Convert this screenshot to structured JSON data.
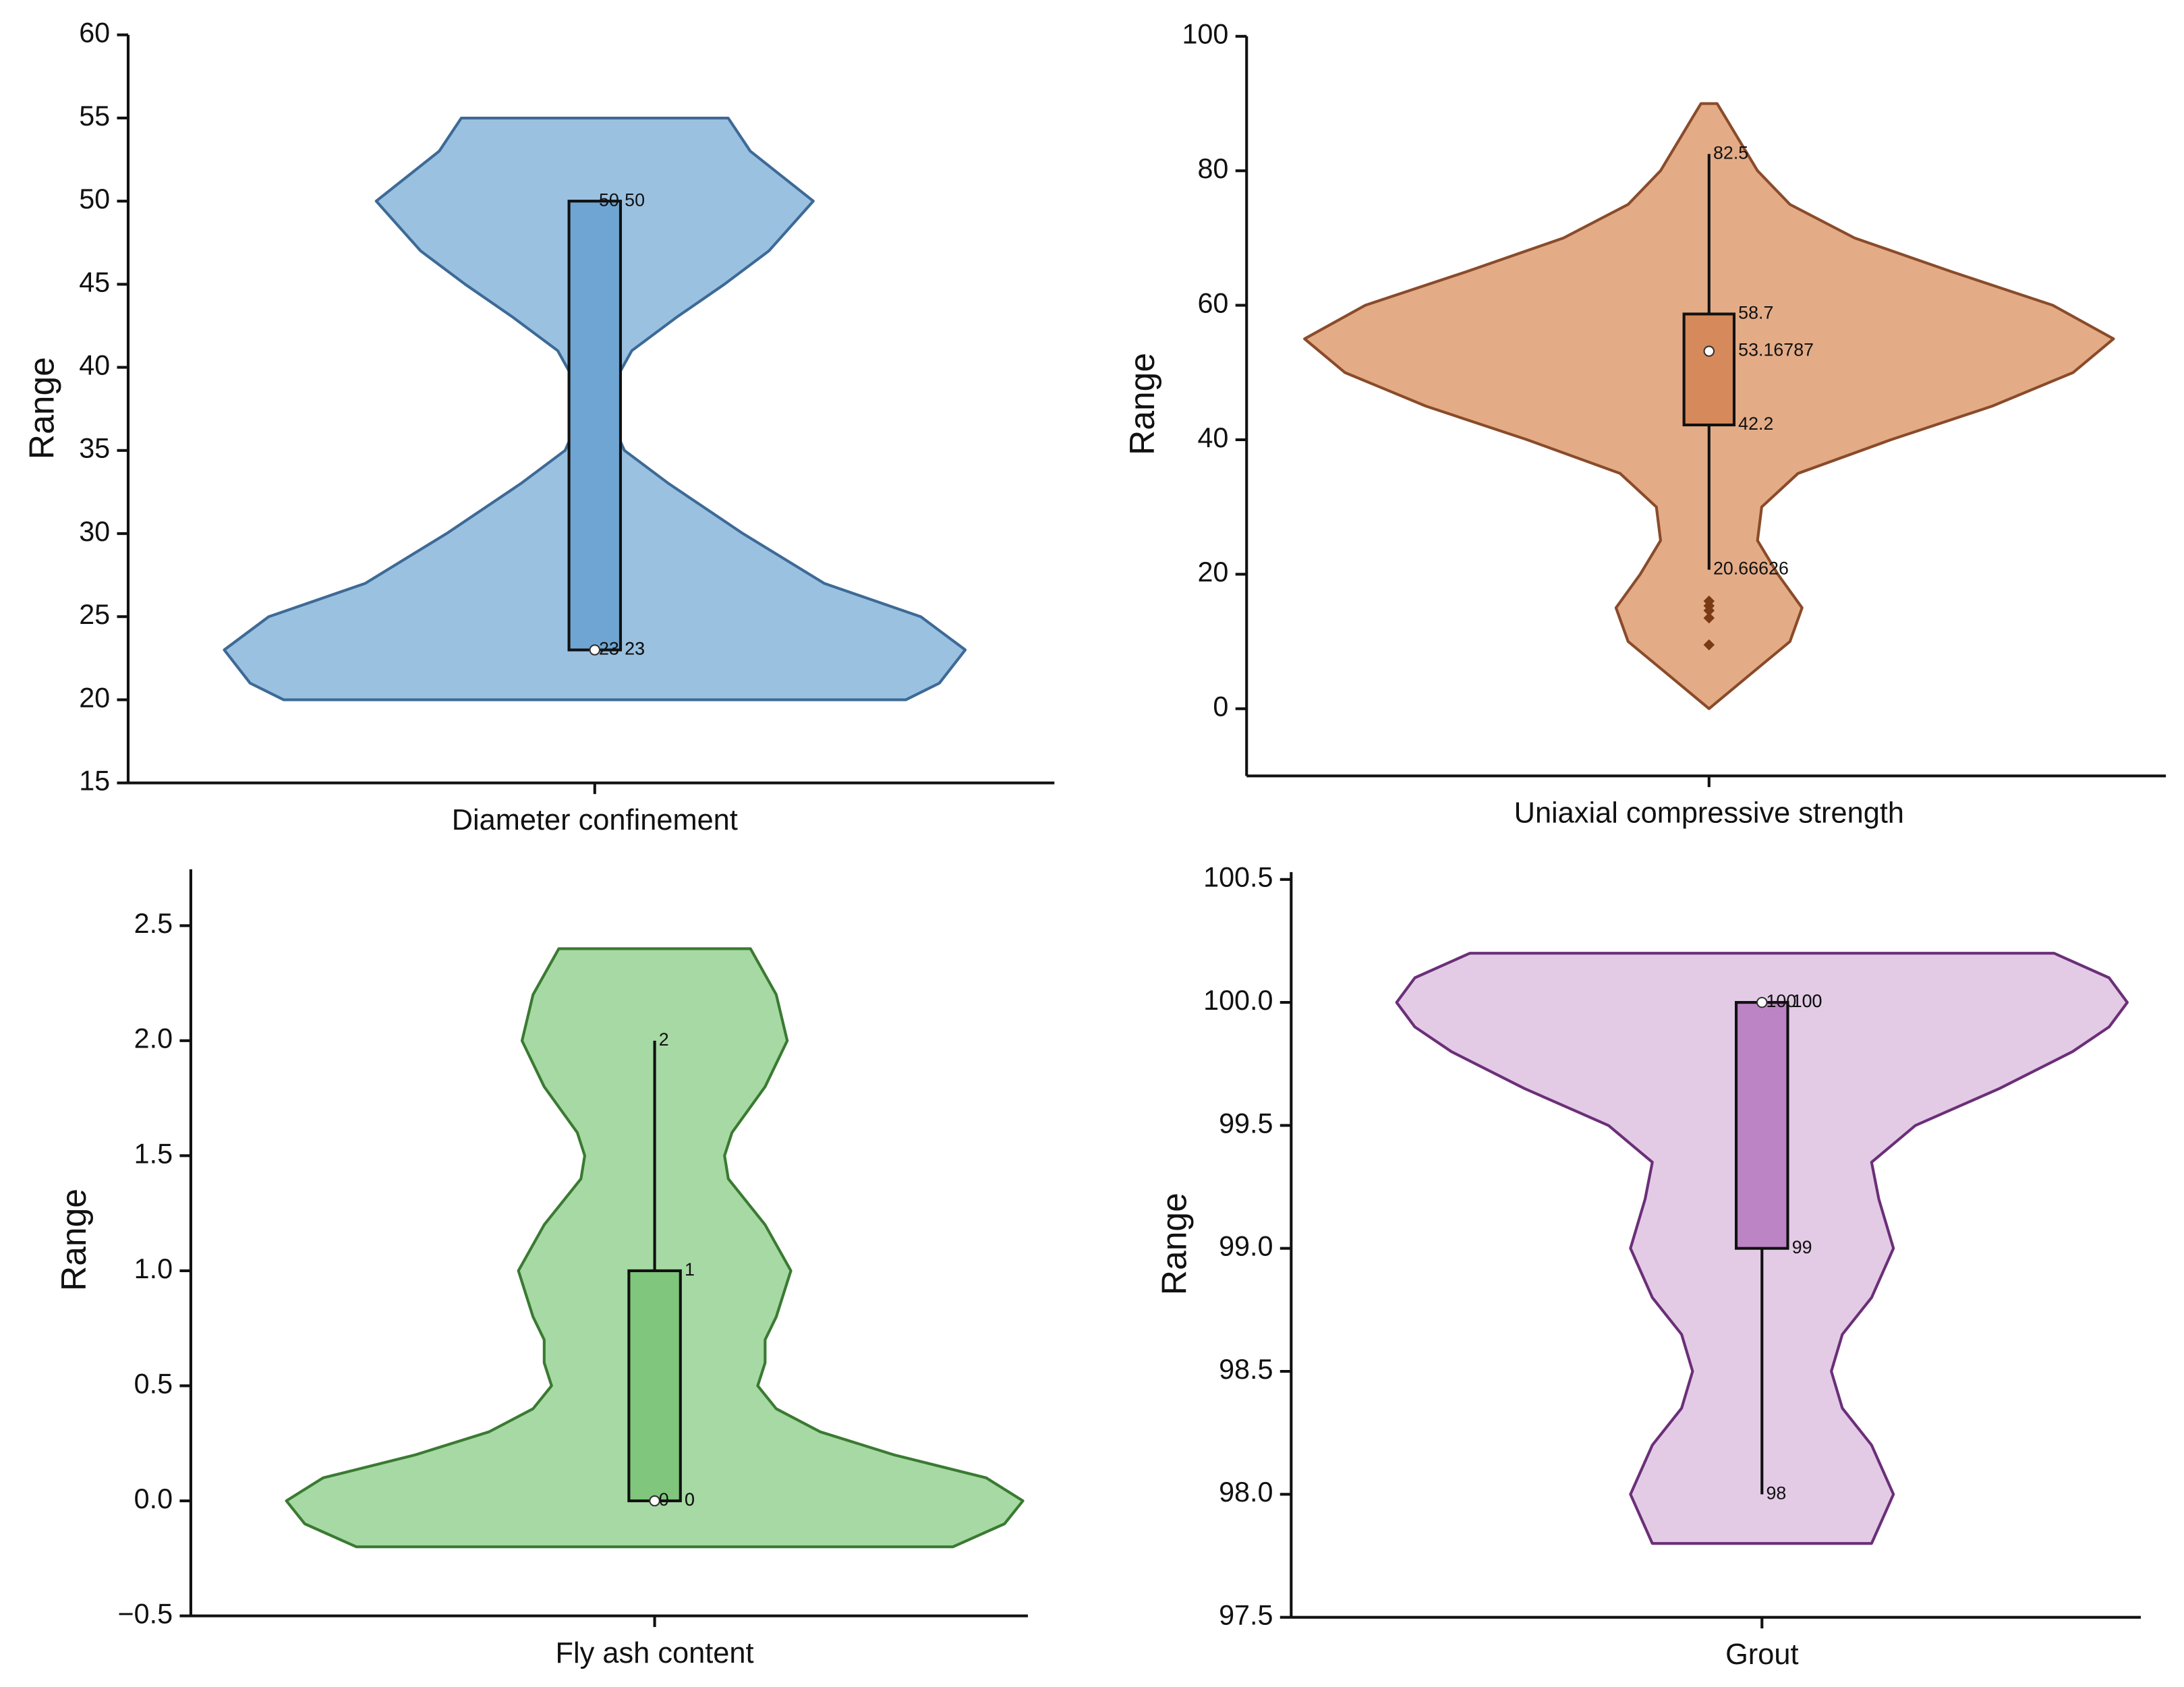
{
  "chart_data": [
    {
      "type": "violin",
      "xlabel": "Diameter confinement",
      "ylabel": "Range",
      "ylim": [
        15,
        60
      ],
      "yticks": [
        15,
        20,
        25,
        30,
        35,
        40,
        45,
        50,
        55,
        60
      ],
      "color": "#9bc1e1",
      "edge_color": "#3d6a96",
      "box_color": "#6fa5d2",
      "outlier_color": "#7a3a14",
      "density_y": [
        20,
        21,
        23,
        25,
        27,
        30,
        33,
        35,
        37,
        39,
        41,
        43,
        45,
        47,
        50,
        53,
        55
      ],
      "density": [
        0.84,
        0.93,
        1.0,
        0.88,
        0.62,
        0.4,
        0.2,
        0.08,
        0.04,
        0.05,
        0.1,
        0.22,
        0.35,
        0.47,
        0.59,
        0.42,
        0.36
      ],
      "box": {
        "whisker_low": 23,
        "q1": 23,
        "median": 23,
        "q3": 50,
        "whisker_high": 50
      },
      "outliers": []
    },
    {
      "type": "violin",
      "xlabel": "Uniaxial compressive strength",
      "ylabel": "Range",
      "ylim": [
        -10,
        100
      ],
      "yticks": [
        0,
        20,
        40,
        60,
        80,
        100
      ],
      "color": "#e3ac87",
      "edge_color": "#8a4b2a",
      "box_color": "#d6895a",
      "outlier_color": "#7a3a14",
      "density_y": [
        0,
        5,
        10,
        15,
        20,
        25,
        30,
        35,
        40,
        45,
        50,
        55,
        60,
        65,
        70,
        75,
        80,
        85,
        88,
        90
      ],
      "density": [
        0,
        0.1,
        0.2,
        0.23,
        0.17,
        0.12,
        0.13,
        0.22,
        0.45,
        0.7,
        0.9,
        1.0,
        0.85,
        0.6,
        0.36,
        0.2,
        0.12,
        0.07,
        0.04,
        0.02
      ],
      "box": {
        "whisker_low": 20.66626,
        "q1": 42.2,
        "median": 53.16787,
        "q3": 58.7,
        "whisker_high": 82.5
      },
      "outliers": [
        16,
        15.3,
        14.6,
        13.5,
        9.5
      ]
    },
    {
      "type": "violin",
      "xlabel": "Fly ash content",
      "ylabel": "Range",
      "ylim": [
        -0.5,
        2.745
      ],
      "yticks": [
        {
          "value": -0.5,
          "label": "−0.5"
        },
        {
          "value": 0,
          "label": "0.0"
        },
        0.5,
        {
          "value": 1,
          "label": "1.0"
        },
        1.5,
        {
          "value": 2,
          "label": "2.0"
        },
        2.5
      ],
      "color": "#a6d9a3",
      "edge_color": "#3a7a32",
      "box_color": "#80c67c",
      "outlier_color": "#2f5e2a",
      "density_y": [
        -0.2,
        -0.1,
        0,
        0.1,
        0.2,
        0.3,
        0.4,
        0.5,
        0.6,
        0.7,
        0.8,
        1.0,
        1.2,
        1.4,
        1.5,
        1.6,
        1.8,
        2.0,
        2.2,
        2.4
      ],
      "density": [
        0.81,
        0.95,
        1.0,
        0.9,
        0.65,
        0.45,
        0.33,
        0.28,
        0.3,
        0.3,
        0.33,
        0.37,
        0.3,
        0.2,
        0.19,
        0.21,
        0.3,
        0.36,
        0.33,
        0.26
      ],
      "box": {
        "whisker_low": 0,
        "q1": 0,
        "median": 0,
        "q3": 1,
        "whisker_high": 2
      },
      "outliers": []
    },
    {
      "type": "violin",
      "xlabel": "Grout",
      "ylabel": "Range",
      "ylim": [
        97.5,
        100.53
      ],
      "yticks": [
        97.5,
        {
          "value": 98,
          "label": "98.0"
        },
        98.5,
        {
          "value": 99,
          "label": "99.0"
        },
        99.5,
        {
          "value": 100,
          "label": "100.0"
        },
        100.5
      ],
      "color": "#e3cbe6",
      "edge_color": "#6b2f78",
      "box_color": "#bd84c5",
      "outlier_color": "#5a2466",
      "density_y": [
        97.8,
        98.0,
        98.2,
        98.35,
        98.5,
        98.65,
        98.8,
        99.0,
        99.2,
        99.35,
        99.5,
        99.65,
        99.8,
        99.9,
        100,
        100.1,
        100.2
      ],
      "density": [
        0.3,
        0.36,
        0.3,
        0.22,
        0.19,
        0.22,
        0.3,
        0.36,
        0.32,
        0.3,
        0.42,
        0.65,
        0.85,
        0.95,
        1.0,
        0.95,
        0.8
      ],
      "box": {
        "whisker_low": 98,
        "q1": 99,
        "median": 100,
        "q3": 100,
        "whisker_high": 100
      },
      "outliers": []
    }
  ]
}
